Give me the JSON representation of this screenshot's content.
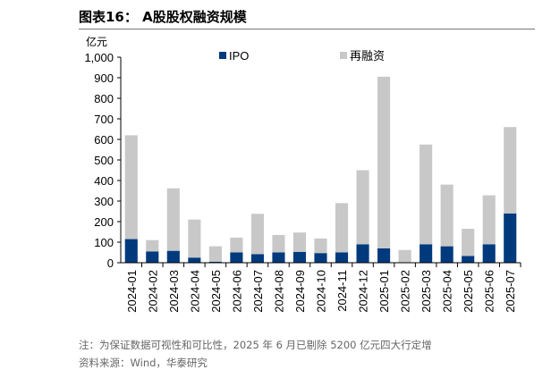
{
  "header": {
    "title": "图表16：  A股股权融资规模"
  },
  "chart_data": {
    "type": "bar",
    "stacked": true,
    "title": "A股股权融资规模",
    "ylabel": "亿元",
    "ylim": [
      0,
      1000
    ],
    "yticks": [
      0,
      100,
      200,
      300,
      400,
      500,
      600,
      700,
      800,
      900,
      1000
    ],
    "ytick_labels": [
      "0",
      "100",
      "200",
      "300",
      "400",
      "500",
      "600",
      "700",
      "800",
      "900",
      "1,000"
    ],
    "categories": [
      "2024-01",
      "2024-02",
      "2024-03",
      "2024-04",
      "2024-05",
      "2024-06",
      "2024-07",
      "2024-08",
      "2024-09",
      "2024-10",
      "2024-11",
      "2024-12",
      "2025-01",
      "2025-02",
      "2025-03",
      "2025-04",
      "2025-05",
      "2025-06",
      "2025-07"
    ],
    "series": [
      {
        "name": "IPO",
        "color": "#003A7D",
        "values": [
          115,
          55,
          58,
          25,
          5,
          50,
          42,
          50,
          53,
          47,
          50,
          90,
          70,
          0,
          90,
          80,
          33,
          90,
          240
        ]
      },
      {
        "name": "再融资",
        "color": "#C8C8C8",
        "values": [
          505,
          55,
          304,
          185,
          75,
          72,
          196,
          85,
          94,
          71,
          240,
          360,
          835,
          62,
          485,
          300,
          132,
          238,
          420
        ]
      }
    ],
    "legend": "top"
  },
  "footer": {
    "note": "注：为保证数据可视性和可比性，2025 年 6 月已剔除 5200 亿元四大行定增",
    "source": "资料来源：Wind，华泰研究"
  }
}
